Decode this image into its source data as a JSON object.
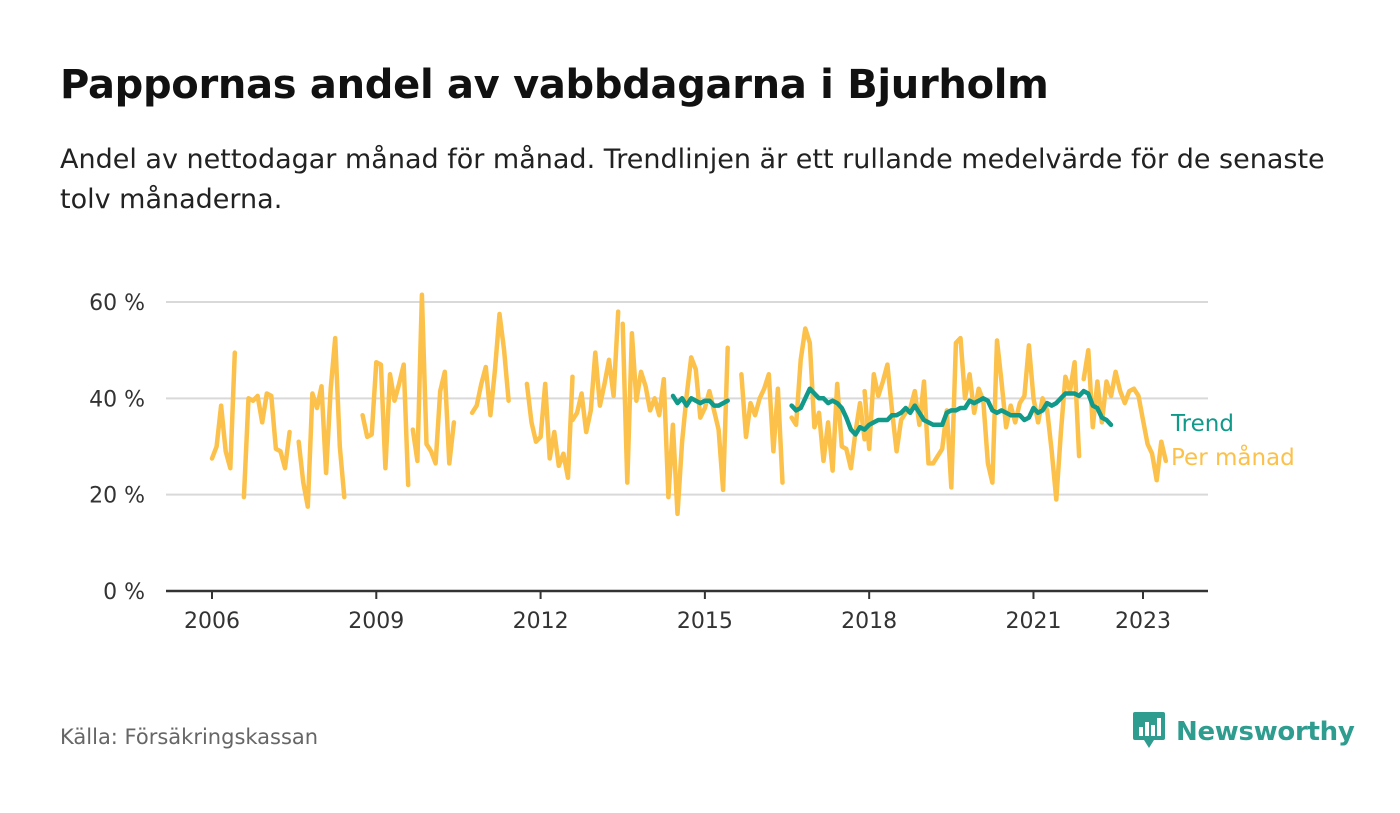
{
  "title": "Pappornas andel av vabbdagarna i Bjurholm",
  "subtitle": "Andel av nettodagar månad för månad. Trendlinjen är ett rullande medelvärde för de senaste tolv månaderna.",
  "source": "Källa: Försäkringskassan",
  "brand": {
    "name": "Newsworthy",
    "icon": "bar-chart-speech-bubble-icon"
  },
  "colors": {
    "monthly": "#fcc14a",
    "trend": "#11998a",
    "grid": "#d9d9d9",
    "axis": "#333333",
    "text": "#333333"
  },
  "chart_data": {
    "type": "line",
    "x_unit": "year (decimal, month = year + (month-1)/12)",
    "xlim": [
      2005.2,
      2023.9
    ],
    "ylim": [
      0,
      60
    ],
    "y_ticks": [
      {
        "value": 0,
        "label": "0 %"
      },
      {
        "value": 20,
        "label": "20 %"
      },
      {
        "value": 40,
        "label": "40 %"
      },
      {
        "value": 60,
        "label": "60 %"
      }
    ],
    "x_ticks": [
      {
        "value": 2006,
        "label": "2006"
      },
      {
        "value": 2009,
        "label": "2009"
      },
      {
        "value": 2012,
        "label": "2012"
      },
      {
        "value": 2015,
        "label": "2015"
      },
      {
        "value": 2018,
        "label": "2018"
      },
      {
        "value": 2021,
        "label": "2021"
      },
      {
        "value": 2023,
        "label": "2023"
      }
    ],
    "grid": true,
    "legend": "inline-right",
    "series": [
      {
        "name": "Per månad",
        "color": "#fcc14a",
        "segments": [
          {
            "start": 2006.0,
            "values": [
              27.5,
              30,
              38.5,
              29,
              25.5,
              49.5,
              null,
              19.5,
              40,
              39.5,
              40.5,
              35,
              41,
              40.5,
              29.5,
              29,
              25.5,
              33,
              null,
              31,
              22.5,
              17.5,
              41,
              38,
              42.5,
              24.5,
              42,
              52.5,
              30,
              19.5
            ]
          },
          {
            "start": 2008.75,
            "values": [
              36.5,
              32,
              32.5,
              47.5,
              47,
              25.5,
              45,
              39.5,
              43,
              47,
              22
            ]
          },
          {
            "start": 2009.667,
            "values": [
              33.5,
              27,
              61.5,
              30.5,
              29,
              26.5,
              41.5,
              45.5,
              26.5,
              35
            ]
          },
          {
            "start": 2010.75,
            "values": [
              37,
              38.5,
              43,
              46.5,
              36.5,
              46,
              57.5,
              50,
              39.5
            ]
          },
          {
            "start": 2011.75,
            "values": [
              43,
              35,
              31,
              32,
              43,
              27.5,
              33,
              26,
              28.5,
              23.5,
              44.5
            ]
          },
          {
            "start": 2012.583,
            "values": [
              35.5,
              37,
              41,
              33,
              37.5,
              49.5,
              38.5,
              43,
              48,
              40.5,
              58
            ]
          },
          {
            "start": 2013.5,
            "values": [
              55.5,
              22.5,
              53.5,
              39.5,
              45.5,
              42.5,
              37.5,
              40,
              36.5,
              44,
              19.5,
              34.5,
              16,
              31,
              40.5,
              48.5,
              46,
              36,
              38,
              41.5,
              37.5,
              33.5,
              21,
              50.5
            ]
          },
          {
            "start": 2015.667,
            "values": [
              45,
              32,
              39,
              36.5,
              40,
              42,
              45,
              29,
              42,
              22.5
            ]
          },
          {
            "start": 2016.583,
            "values": [
              36,
              34.5,
              48,
              54.5,
              51.5,
              34,
              37,
              27,
              35,
              25,
              43,
              30,
              29.5,
              25.5,
              33,
              39,
              31.5
            ]
          },
          {
            "start": 2017.917,
            "values": [
              41.5,
              29.5,
              45,
              40.5,
              43.5,
              47,
              37.5,
              29,
              35.5,
              37,
              38,
              41.5,
              34.5,
              43.5,
              26.5,
              26.5,
              28,
              29.5,
              37.5,
              21.5,
              51.5,
              52.5,
              40,
              45,
              37,
              42,
              39.5,
              26.5,
              22.5,
              52,
              43.5,
              34,
              38.5,
              35,
              39,
              40.5,
              51,
              40,
              35,
              40,
              37.5,
              29,
              19,
              33,
              44.5,
              41.5,
              47.5,
              28
            ]
          },
          {
            "start": 2021.917,
            "values": [
              44,
              50,
              34,
              43.5,
              35,
              43.5,
              40.5,
              45.5,
              41.5,
              39,
              41.5,
              42,
              40.5,
              35.5,
              30.5,
              28.5,
              23,
              31,
              27
            ]
          }
        ]
      },
      {
        "name": "Trend",
        "color": "#11998a",
        "segments": [
          {
            "start": 2014.417,
            "values": [
              40.5,
              39,
              40,
              38.5,
              40,
              39.5,
              39,
              39.5,
              39.5,
              38.5,
              38.5,
              39,
              39.5
            ]
          },
          {
            "start": 2016.583,
            "values": [
              38.5,
              37.5,
              38,
              40,
              42,
              41,
              40,
              40,
              39,
              39.5,
              39,
              38,
              36,
              33.5,
              32.5,
              34,
              33.5,
              34.5,
              35,
              35.5,
              35.5,
              35.5,
              36.5,
              36.5,
              37,
              38,
              37,
              38.5,
              37,
              35.5,
              35,
              34.5,
              34.5,
              34.5,
              37,
              37.5,
              37.5,
              38,
              38,
              39.5,
              39,
              39.5,
              40,
              39.5,
              37.5,
              37,
              37.5,
              37,
              36.5,
              36.5,
              36.5,
              35.5,
              36,
              38,
              37,
              37.5,
              39,
              38.5,
              39,
              40,
              41,
              41,
              41,
              40.5,
              41.5,
              41,
              38.5,
              38,
              36,
              35.5,
              34.5
            ]
          }
        ]
      }
    ]
  }
}
